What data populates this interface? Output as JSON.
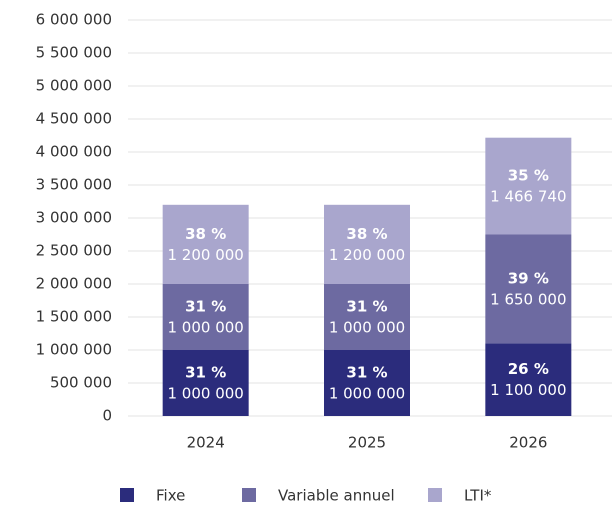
{
  "chart_data": {
    "type": "stacked_bar",
    "categories": [
      "2024",
      "2025",
      "2026"
    ],
    "series": [
      {
        "name": "Fixe",
        "color": "#2b2c7c",
        "values": [
          1000000,
          1000000,
          1100000
        ],
        "value_labels": [
          "1 000 000",
          "1 000 000",
          "1 100 000"
        ],
        "share_labels": [
          "31 %",
          "31 %",
          "26 %"
        ]
      },
      {
        "name": "Variable annuel",
        "color": "#6d6aa1",
        "values": [
          1000000,
          1000000,
          1650000
        ],
        "value_labels": [
          "1 000 000",
          "1 000 000",
          "1 650 000"
        ],
        "share_labels": [
          "31 %",
          "31 %",
          "39 %"
        ]
      },
      {
        "name": "LTI*",
        "color": "#a9a6cd",
        "values": [
          1200000,
          1200000,
          1466740
        ],
        "value_labels": [
          "1 200 000",
          "1 200 000",
          "1 466 740"
        ],
        "share_labels": [
          "38 %",
          "38 %",
          "35 %"
        ]
      }
    ],
    "ylim": [
      0,
      6000000
    ],
    "yticks": [
      0,
      {
        "value": 500000,
        "label": "500 000"
      },
      {
        "value": 1000000,
        "label": "1 000 000"
      },
      {
        "value": 1500000,
        "label": "1 500 000"
      },
      {
        "value": 2000000,
        "label": "2 000 000"
      },
      {
        "value": 2500000,
        "label": "2 500 000"
      },
      {
        "value": 3000000,
        "label": "3 000 000"
      },
      {
        "value": 3500000,
        "label": "3 500 000"
      },
      {
        "value": 4000000,
        "label": "4 000 000"
      },
      {
        "value": 4500000,
        "label": "4 500 000"
      },
      {
        "value": 5000000,
        "label": "5 000 000"
      },
      {
        "value": 5500000,
        "label": "5 500 000"
      },
      {
        "value": 6000000,
        "label": "6 000 000"
      }
    ],
    "grid": true
  }
}
